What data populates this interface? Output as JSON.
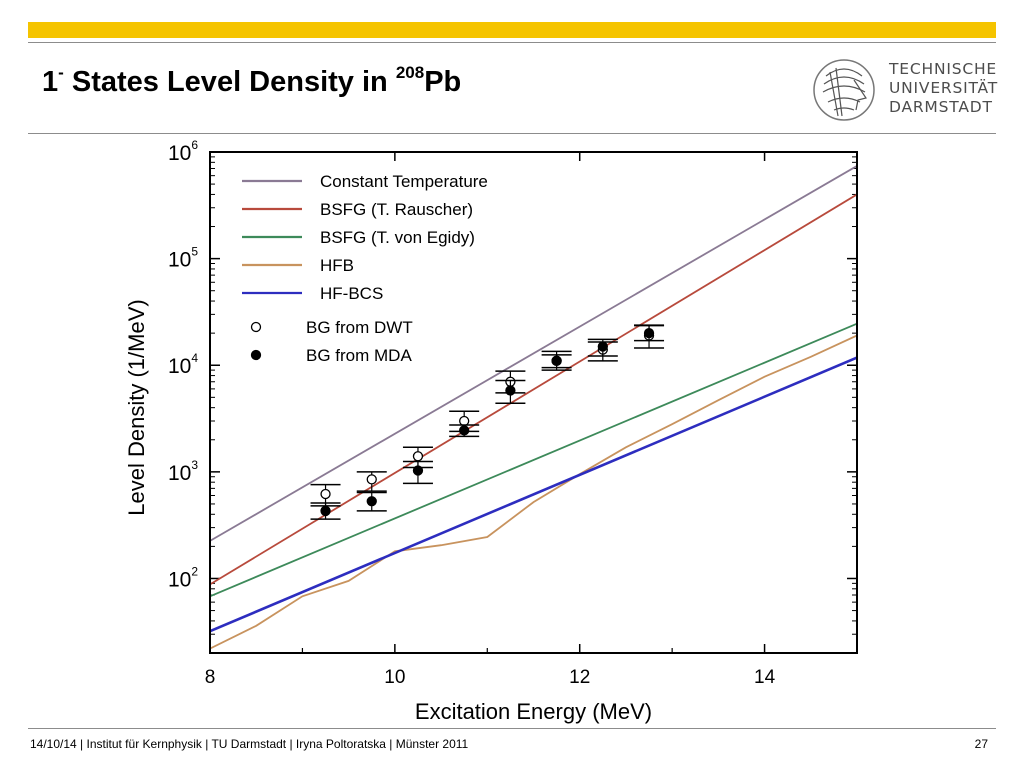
{
  "slide": {
    "title_main": "1",
    "title_sup": "-",
    "title_mid": " States Level Density in ",
    "title_iso": "208",
    "title_el": "Pb",
    "logo_lines": [
      "TECHNISCHE",
      "UNIVERSITÄT",
      "DARMSTADT"
    ],
    "footer": "14/10/14 | Institut für Kernphysik | TU Darmstadt | Iryna Poltoratska | Münster 2011",
    "page_number": "27",
    "accent_color": "#f5c400"
  },
  "chart_data": {
    "type": "line",
    "xlabel": "Excitation Energy (MeV)",
    "ylabel": "Level Density (1/MeV)",
    "xlim": [
      8,
      15
    ],
    "ylim": [
      20,
      1000000
    ],
    "yscale": "log",
    "xticks": [
      8,
      10,
      12,
      14
    ],
    "yticks": [
      {
        "value": 100,
        "base": "10",
        "exp": "2"
      },
      {
        "value": 1000,
        "base": "10",
        "exp": "3"
      },
      {
        "value": 10000,
        "base": "10",
        "exp": "4"
      },
      {
        "value": 100000,
        "base": "10",
        "exp": "5"
      },
      {
        "value": 1000000,
        "base": "10",
        "exp": "6"
      }
    ],
    "legend_position": "top-left",
    "series": [
      {
        "name": "Constant Temperature",
        "color": "#8a7a94",
        "x": [
          8,
          15
        ],
        "y": [
          225,
          740000
        ]
      },
      {
        "name": "BSFG (T. Rauscher)",
        "color": "#b84a3c",
        "x": [
          8,
          15
        ],
        "y": [
          88,
          400000
        ]
      },
      {
        "name": "BSFG (T. von Egidy)",
        "color": "#3d8a5a",
        "x": [
          8,
          15
        ],
        "y": [
          68,
          24500
        ]
      },
      {
        "name": "HFB",
        "color": "#c8935e",
        "x": [
          8,
          8.5,
          9,
          9.5,
          10,
          10.5,
          11,
          11.5,
          12,
          12.5,
          13,
          13.5,
          14,
          14.5,
          15
        ],
        "y": [
          22,
          36,
          68,
          95,
          180,
          205,
          245,
          520,
          950,
          1700,
          2800,
          4700,
          7800,
          12000,
          19000
        ]
      },
      {
        "name": "HF-BCS",
        "color": "#2d2dbf",
        "x": [
          8,
          15
        ],
        "y": [
          32,
          11800
        ]
      }
    ],
    "points": [
      {
        "name": "BG from DWT",
        "filled": false,
        "x": [
          9.25,
          9.75,
          10.25,
          10.75,
          11.25,
          11.75,
          12.25,
          12.75
        ],
        "y": [
          620,
          850,
          1400,
          3000,
          7000,
          11000,
          14000,
          19000
        ],
        "y_low": [
          480,
          660,
          1100,
          2400,
          5500,
          9000,
          11000,
          14500
        ],
        "y_high": [
          760,
          1000,
          1700,
          3700,
          8800,
          13500,
          16500,
          23500
        ]
      },
      {
        "name": "BG from MDA",
        "filled": true,
        "x": [
          9.25,
          9.75,
          10.25,
          10.75,
          11.25,
          11.75,
          12.25,
          12.75
        ],
        "y": [
          430,
          530,
          1030,
          2450,
          5800,
          11000,
          15000,
          20000
        ],
        "y_low": [
          360,
          430,
          780,
          2150,
          4400,
          9500,
          12200,
          17000
        ],
        "y_high": [
          510,
          640,
          1250,
          2750,
          7200,
          12500,
          17500,
          23800
        ]
      }
    ]
  }
}
